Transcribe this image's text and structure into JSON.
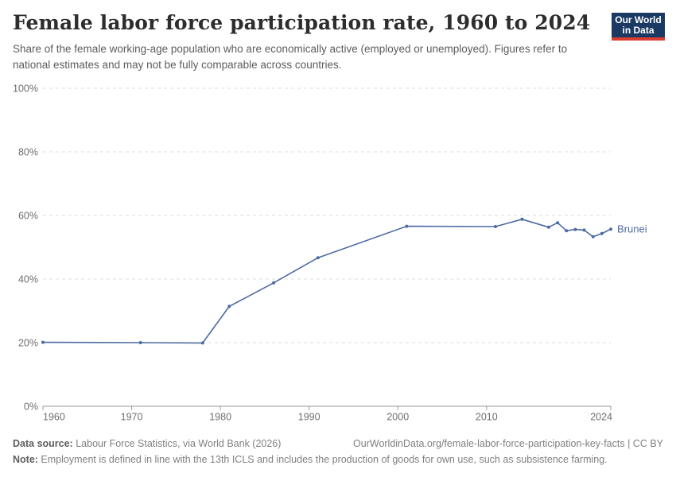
{
  "colors": {
    "navy": "#1a3a63",
    "red": "#dc3d33",
    "line": "#4c6ba3",
    "grid": "#dcdcdc",
    "axis": "#999999",
    "tick_label": "#6e6e6e"
  },
  "header": {
    "title": "Female labor force participation rate, 1960 to 2024",
    "subtitle": "Share of the female working-age population who are economically active (employed or unemployed). Figures refer to national estimates and may not be fully comparable across countries.",
    "logo_line1": "Our World",
    "logo_line2": "in Data"
  },
  "chart_data": {
    "type": "line",
    "title": "Female labor force participation rate, 1960 to 2024",
    "entity": "Brunei",
    "unit": "%",
    "xlim": [
      1960,
      2024
    ],
    "ylim": [
      0,
      100
    ],
    "xticks": [
      1960,
      1970,
      1980,
      1990,
      2000,
      2010,
      2024
    ],
    "yticks": [
      0,
      20,
      40,
      60,
      80,
      100
    ],
    "ytick_suffix": "%",
    "grid": "horizontal-dashed",
    "legend_position": "end-of-line-label",
    "series": [
      {
        "name": "Brunei",
        "color": "#4c6ba3",
        "points": [
          [
            1960,
            20.1
          ],
          [
            1971,
            20.0
          ],
          [
            1978,
            19.9
          ],
          [
            1981,
            31.4
          ],
          [
            1986,
            38.8
          ],
          [
            1991,
            46.7
          ],
          [
            2001,
            56.6
          ],
          [
            2011,
            56.5
          ],
          [
            2014,
            58.8
          ],
          [
            2017,
            56.3
          ],
          [
            2018,
            57.7
          ],
          [
            2019,
            55.2
          ],
          [
            2020,
            55.6
          ],
          [
            2021,
            55.4
          ],
          [
            2022,
            53.3
          ],
          [
            2023,
            54.3
          ],
          [
            2024,
            55.7
          ]
        ]
      }
    ]
  },
  "footer": {
    "source_label": "Data source:",
    "source_text": " Labour Force Statistics, via World Bank (2026)",
    "link_text": "OurWorldinData.org/female-labor-force-participation-key-facts | CC BY",
    "note_label": "Note:",
    "note_text": " Employment is defined in line with the 13th ICLS and includes the production of goods for own use, such as subsistence farming."
  }
}
